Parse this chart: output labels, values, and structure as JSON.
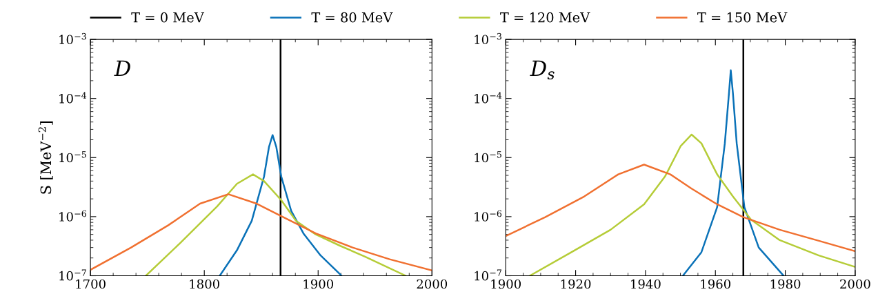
{
  "chart_data": [
    {
      "type": "line",
      "ylabel": "S [MeV$^{−2}$]",
      "log": "y",
      "legend": "top",
      "grid": false,
      "annotations": [
        {
          "text": "D"
        }
      ],
      "xlim": [
        1700,
        2000
      ],
      "xticks": [
        1700,
        1800,
        1900,
        2000
      ],
      "ylim": [
        1e-07,
        0.001
      ],
      "yticks": [
        {
          "value": 1e-07,
          "label": "10$^{−7}$"
        },
        {
          "value": 1e-06,
          "label": "10$^{−6}$"
        },
        {
          "value": 1e-05,
          "label": "10$^{−5}$"
        },
        {
          "value": 0.0001,
          "label": "10$^{−4}$"
        },
        {
          "value": 0.001,
          "label": "10$^{−3}$"
        }
      ],
      "series": [
        {
          "name": "T = 0 MeV",
          "color": "#000000",
          "x": [
            1867,
            1867
          ],
          "values": [
            1e-07,
            0.001
          ]
        },
        {
          "name": "T = 80 MeV",
          "color": "#0a72b8",
          "x": [
            1813.6,
            1828.7,
            1841.7,
            1852.5,
            1856.8,
            1860,
            1863.3,
            1867.6,
            1876.3,
            1887.1,
            1902.2,
            1920.6
          ],
          "values": [
            1e-07,
            2.7e-07,
            8.5e-07,
            4.8e-06,
            1.5e-05,
            2.4e-05,
            1.5e-05,
            4.8e-06,
            1.26e-06,
            5.2e-07,
            2.2e-07,
            1e-07
          ]
        },
        {
          "name": "T = 120 MeV",
          "color": "#b5cc37",
          "x": [
            1748.7,
            1779,
            1811.4,
            1828.7,
            1842.8,
            1852.5,
            1867.6,
            1880.6,
            1897.9,
            1919.5,
            1941.2,
            1976.9
          ],
          "values": [
            1e-07,
            3.6e-07,
            1.5e-06,
            3.6e-06,
            5.2e-06,
            4e-06,
            1.9e-06,
            8.5e-07,
            5e-07,
            3.2e-07,
            2.1e-07,
            1e-07
          ]
        },
        {
          "name": "T = 150 MeV",
          "color": "#f07030",
          "x": [
            1700,
            1735.7,
            1768.1,
            1796.3,
            1821.1,
            1846,
            1867.6,
            1897.9,
            1930.3,
            1962.8,
            2000
          ],
          "values": [
            1.26e-07,
            3e-07,
            7.1e-07,
            1.66e-06,
            2.4e-06,
            1.66e-06,
            1.02e-06,
            5.2e-07,
            3e-07,
            1.9e-07,
            1.23e-07
          ]
        }
      ]
    },
    {
      "type": "line",
      "log": "y",
      "grid": false,
      "annotations": [
        {
          "text": "D$_{s}$"
        }
      ],
      "xlim": [
        1900,
        2000
      ],
      "xticks": [
        1900,
        1920,
        1940,
        1960,
        1980,
        2000
      ],
      "ylim": [
        1e-07,
        0.001
      ],
      "yticks": [
        {
          "value": 1e-07,
          "label": "10$^{−7}$"
        },
        {
          "value": 1e-06,
          "label": "10$^{−6}$"
        },
        {
          "value": 1e-05,
          "label": "10$^{−5}$"
        },
        {
          "value": 0.0001,
          "label": "10$^{−4}$"
        },
        {
          "value": 0.001,
          "label": "10$^{−3}$"
        }
      ],
      "series": [
        {
          "color": "#000000",
          "x": [
            1968,
            1968
          ],
          "values": [
            1e-07,
            0.001
          ]
        },
        {
          "color": "#0a72b8",
          "x": [
            1950.7,
            1956,
            1960.5,
            1962.7,
            1963.9,
            1964.4,
            1965,
            1966.1,
            1968.3,
            1972.4,
            1979.5
          ],
          "values": [
            1e-07,
            2.5e-07,
            1.45e-06,
            1.74e-05,
            0.000126,
            0.0003,
            0.000126,
            1.74e-05,
            1.45e-06,
            3e-07,
            1e-07
          ]
        },
        {
          "color": "#b5cc37",
          "x": [
            1906.9,
            1918.8,
            1930,
            1939.6,
            1945.6,
            1950.1,
            1953.2,
            1956,
            1960.5,
            1965,
            1970.2,
            1978.4,
            1989.6,
            2000
          ],
          "values": [
            1e-07,
            2.5e-07,
            6e-07,
            1.62e-06,
            4.8e-06,
            1.58e-05,
            2.45e-05,
            1.74e-05,
            5.2e-06,
            2.2e-06,
            8.9e-07,
            4e-07,
            2.2e-07,
            1.41e-07
          ]
        },
        {
          "color": "#f07030",
          "x": [
            1900,
            1911.3,
            1922.5,
            1932.2,
            1939.6,
            1947.1,
            1953.1,
            1960.5,
            1968,
            1978.4,
            1989.6,
            2000
          ],
          "values": [
            4.7e-07,
            9.8e-07,
            2.2e-06,
            5.2e-06,
            7.6e-06,
            5.2e-06,
            3e-06,
            1.62e-06,
            9.8e-07,
            6e-07,
            3.9e-07,
            2.6e-07
          ]
        }
      ]
    }
  ]
}
